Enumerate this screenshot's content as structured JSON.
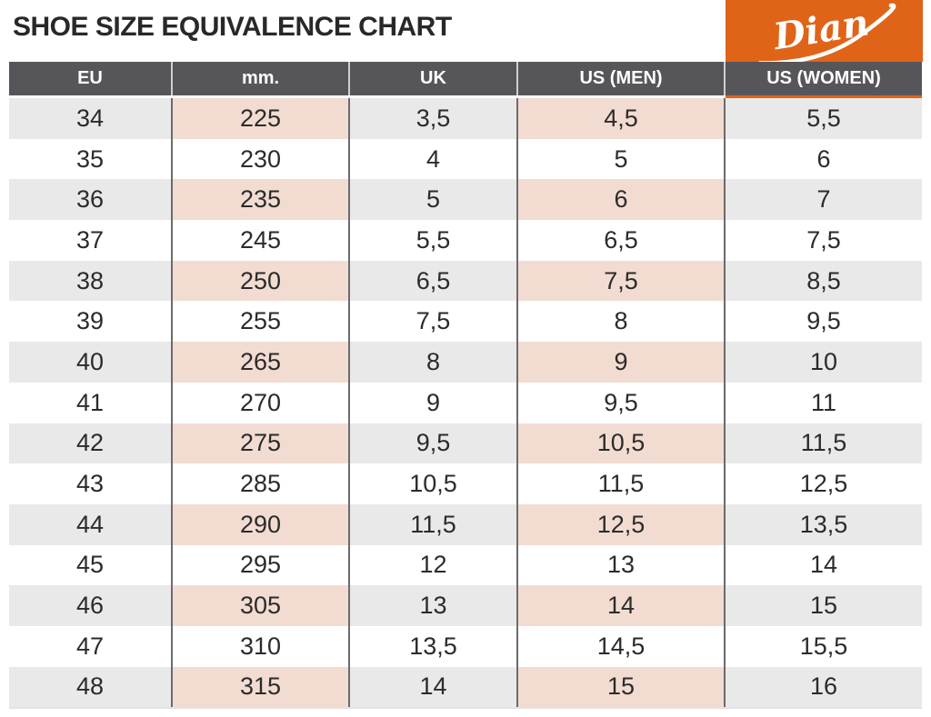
{
  "page": {
    "title": "SHOE SIZE EQUIVALENCE CHART"
  },
  "logo": {
    "brand": "Dian"
  },
  "colors": {
    "accent_orange": "#e06418",
    "header_gray": "#56565a",
    "row_gray": "#e9e9e9",
    "row_peach": "#f2dcd1",
    "text_dark": "#2b2b2b"
  },
  "chart_data": {
    "type": "table",
    "title": "SHOE SIZE EQUIVALENCE CHART",
    "columns": [
      {
        "label": "EU"
      },
      {
        "label": "mm."
      },
      {
        "label": "UK"
      },
      {
        "label": "US (MEN)"
      },
      {
        "label": "US (WOMEN)"
      }
    ],
    "peach_columns": [
      1,
      3
    ],
    "striping": "alternating rows shaded starting with the first row; shaded rows use gray for EU/UK/US(WOMEN) and peach for mm./US(MEN)",
    "rows": [
      [
        "34",
        "225",
        "3,5",
        "4,5",
        "5,5"
      ],
      [
        "35",
        "230",
        "4",
        "5",
        "6"
      ],
      [
        "36",
        "235",
        "5",
        "6",
        "7"
      ],
      [
        "37",
        "245",
        "5,5",
        "6,5",
        "7,5"
      ],
      [
        "38",
        "250",
        "6,5",
        "7,5",
        "8,5"
      ],
      [
        "39",
        "255",
        "7,5",
        "8",
        "9,5"
      ],
      [
        "40",
        "265",
        "8",
        "9",
        "10"
      ],
      [
        "41",
        "270",
        "9",
        "9,5",
        "11"
      ],
      [
        "42",
        "275",
        "9,5",
        "10,5",
        "11,5"
      ],
      [
        "43",
        "285",
        "10,5",
        "11,5",
        "12,5"
      ],
      [
        "44",
        "290",
        "11,5",
        "12,5",
        "13,5"
      ],
      [
        "45",
        "295",
        "12",
        "13",
        "14"
      ],
      [
        "46",
        "305",
        "13",
        "14",
        "15"
      ],
      [
        "47",
        "310",
        "13,5",
        "14,5",
        "15,5"
      ],
      [
        "48",
        "315",
        "14",
        "15",
        "16"
      ]
    ]
  }
}
